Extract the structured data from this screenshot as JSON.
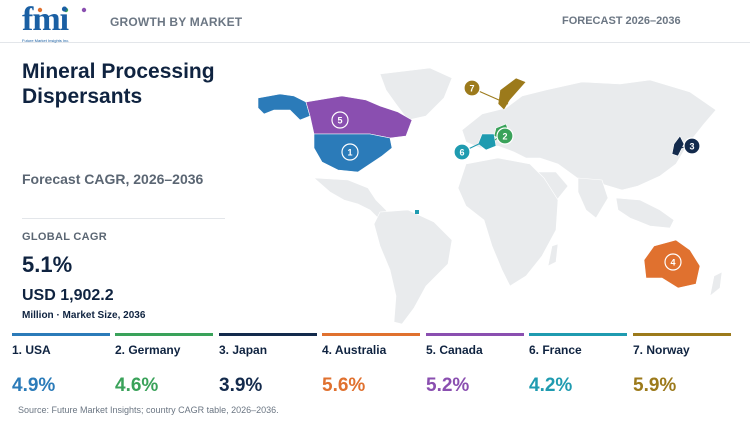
{
  "header": {
    "logo_text": "fmi",
    "logo_tagline": "Future Market Insights Inc.",
    "left": "GROWTH BY MARKET",
    "right": "FORECAST 2026–2036"
  },
  "title": "Mineral Processing Dispersants",
  "subtitle": "Forecast CAGR, 2026–2036",
  "global": {
    "label": "GLOBAL CAGR",
    "value": "5.1%",
    "market_size": "USD 1,902.2",
    "market_size_label": "Million · Market Size, 2036"
  },
  "countries": [
    {
      "label": "1. USA",
      "cagr": "4.9%",
      "color": "#2b7bb9",
      "marker": "1"
    },
    {
      "label": "2. Germany",
      "cagr": "4.6%",
      "color": "#3aa25a",
      "marker": "2"
    },
    {
      "label": "3. Japan",
      "cagr": "3.9%",
      "color": "#132a4c",
      "marker": "3"
    },
    {
      "label": "4. Australia",
      "cagr": "5.6%",
      "color": "#e0712f",
      "marker": "4"
    },
    {
      "label": "5. Canada",
      "cagr": "5.2%",
      "color": "#8a4fb0",
      "marker": "5"
    },
    {
      "label": "6. France",
      "cagr": "4.2%",
      "color": "#1f9bb0",
      "marker": "6"
    },
    {
      "label": "7. Norway",
      "cagr": "5.9%",
      "color": "#9c7a1b",
      "marker": "7"
    }
  ],
  "source": "Source: Future Market Insights; country CAGR table, 2026–2036."
}
